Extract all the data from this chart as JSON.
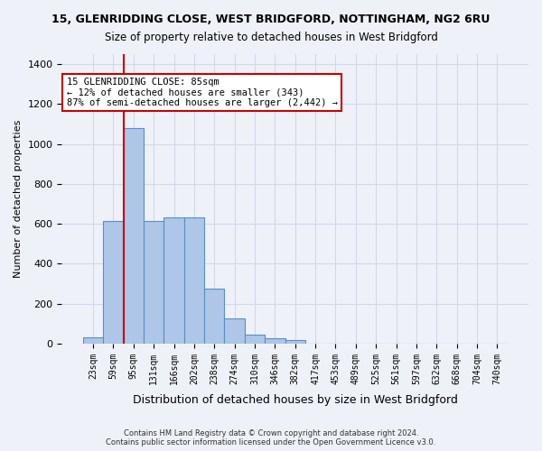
{
  "title1": "15, GLENRIDDING CLOSE, WEST BRIDGFORD, NOTTINGHAM, NG2 6RU",
  "title2": "Size of property relative to detached houses in West Bridgford",
  "xlabel": "Distribution of detached houses by size in West Bridgford",
  "ylabel": "Number of detached properties",
  "footer1": "Contains HM Land Registry data © Crown copyright and database right 2024.",
  "footer2": "Contains public sector information licensed under the Open Government Licence v3.0.",
  "bin_labels": [
    "23sqm",
    "59sqm",
    "95sqm",
    "131sqm",
    "166sqm",
    "202sqm",
    "238sqm",
    "274sqm",
    "310sqm",
    "346sqm",
    "382sqm",
    "417sqm",
    "453sqm",
    "489sqm",
    "525sqm",
    "561sqm",
    "597sqm",
    "632sqm",
    "668sqm",
    "704sqm",
    "740sqm"
  ],
  "bar_values": [
    30,
    615,
    1080,
    615,
    630,
    630,
    275,
    125,
    45,
    25,
    18,
    0,
    0,
    0,
    0,
    0,
    0,
    0,
    0,
    0,
    0
  ],
  "bar_color": "#aec6e8",
  "bar_edge_color": "#5a8fc0",
  "vline_x_index": 2,
  "vline_color": "#cc0000",
  "annotation_text": "15 GLENRIDDING CLOSE: 85sqm\n← 12% of detached houses are smaller (343)\n87% of semi-detached houses are larger (2,442) →",
  "annotation_box_color": "#cc0000",
  "annotation_text_color": "#000000",
  "ylim": [
    0,
    1450
  ],
  "yticks": [
    0,
    200,
    400,
    600,
    800,
    1000,
    1200,
    1400
  ],
  "grid_color": "#d0d8e8",
  "background_color": "#eef2f8",
  "axes_background_color": "#eef2f8"
}
